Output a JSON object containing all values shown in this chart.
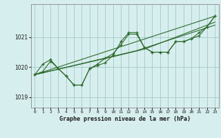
{
  "title": "Graphe pression niveau de la mer (hPa)",
  "background_color": "#d7eeee",
  "grid_color": "#aacccc",
  "line_color": "#2d6a2d",
  "xlim": [
    -0.5,
    23.5
  ],
  "ylim": [
    1018.65,
    1022.1
  ],
  "yticks": [
    1019,
    1020,
    1021
  ],
  "xticks": [
    0,
    1,
    2,
    3,
    4,
    5,
    6,
    7,
    8,
    9,
    10,
    11,
    12,
    13,
    14,
    15,
    16,
    17,
    18,
    19,
    20,
    21,
    22,
    23
  ],
  "series1_x": [
    0,
    1,
    2,
    3,
    4,
    5,
    6,
    7,
    8,
    9,
    10,
    11,
    12,
    13,
    14,
    15,
    16,
    17,
    18,
    19,
    20,
    21,
    22,
    23
  ],
  "series1_y": [
    1019.75,
    1019.85,
    1020.2,
    1019.95,
    1019.7,
    1019.4,
    1019.4,
    1019.95,
    1020.05,
    1020.15,
    1020.4,
    1020.85,
    1021.15,
    1021.15,
    1020.65,
    1020.5,
    1020.5,
    1020.5,
    1020.85,
    1020.85,
    1020.95,
    1021.15,
    1021.35,
    1021.7
  ],
  "series2_x": [
    0,
    1,
    2,
    3,
    4,
    5,
    6,
    7,
    8,
    9,
    10,
    11,
    12,
    13,
    14,
    15,
    16,
    17,
    18,
    19,
    20,
    21,
    22,
    23
  ],
  "series2_y": [
    1019.75,
    1020.1,
    1020.25,
    1019.95,
    1019.7,
    1019.4,
    1019.4,
    1019.95,
    1020.1,
    1020.3,
    1020.45,
    1020.75,
    1021.1,
    1021.1,
    1020.65,
    1020.5,
    1020.5,
    1020.5,
    1020.85,
    1020.85,
    1020.95,
    1021.05,
    1021.35,
    1021.7
  ],
  "series3_x": [
    0,
    23
  ],
  "series3_y": [
    1019.75,
    1021.7
  ],
  "series4_x": [
    0,
    10,
    14,
    23
  ],
  "series4_y": [
    1019.75,
    1020.35,
    1020.6,
    1021.5
  ],
  "series5_x": [
    0,
    13,
    23
  ],
  "series5_y": [
    1019.75,
    1020.55,
    1021.4
  ]
}
